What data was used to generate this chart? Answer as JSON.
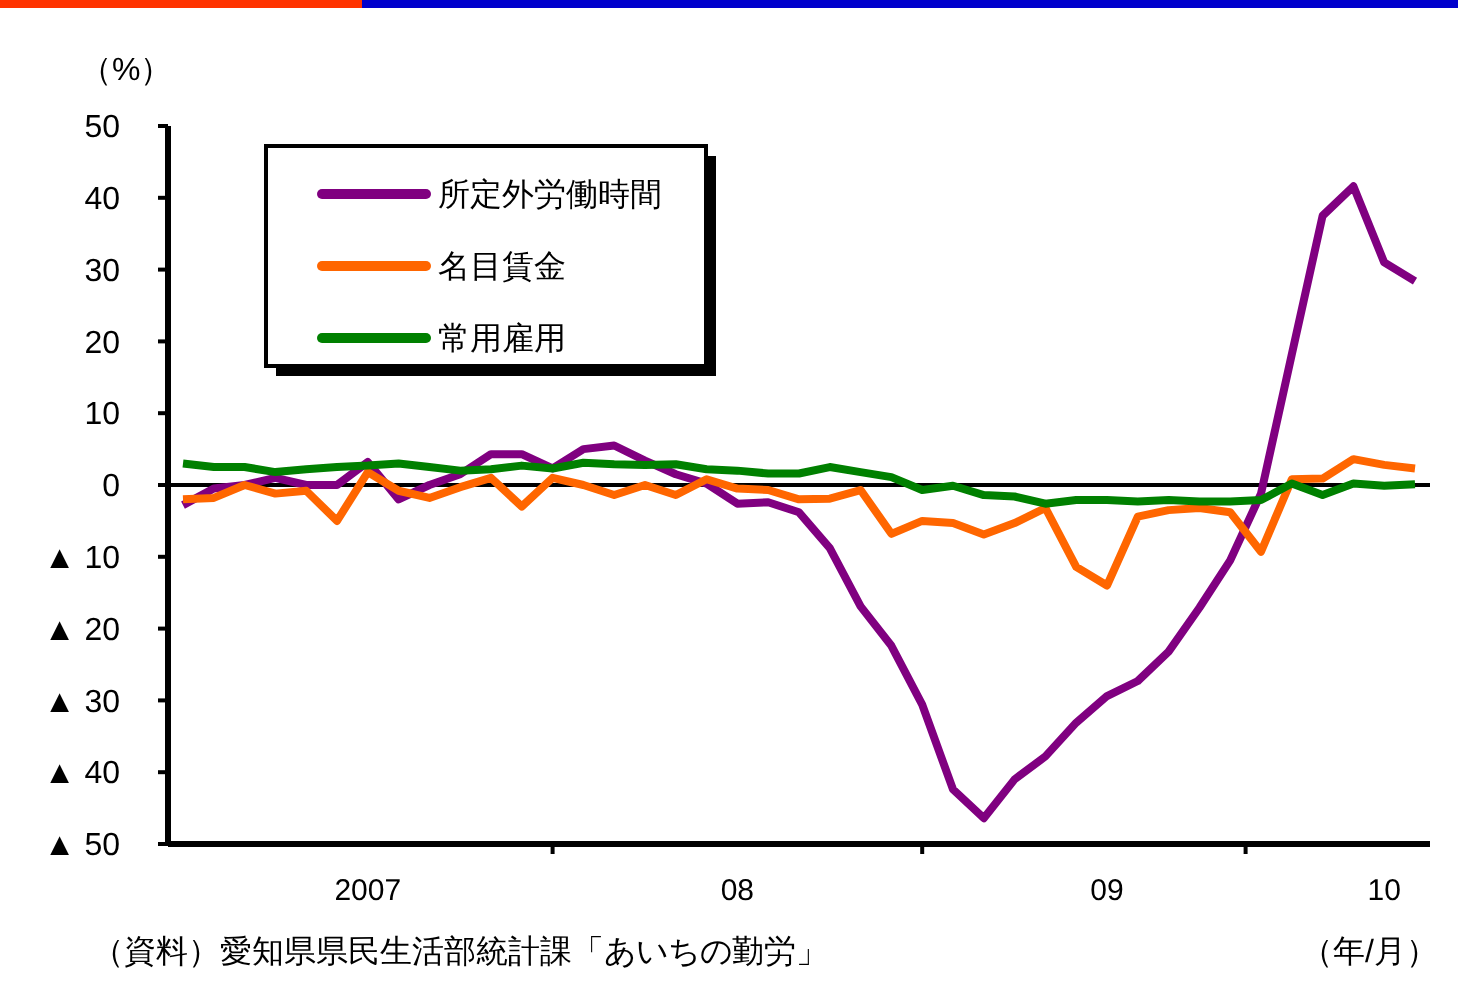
{
  "chart_data": {
    "type": "line",
    "ylabel": "（%）",
    "xlabel": "（年/月）",
    "categories": [
      null,
      null,
      null,
      null,
      null,
      null,
      "2007",
      null,
      null,
      null,
      null,
      null,
      null,
      null,
      null,
      null,
      null,
      null,
      "08",
      null,
      null,
      null,
      null,
      null,
      null,
      null,
      null,
      null,
      null,
      null,
      "09",
      null,
      null,
      null,
      null,
      null,
      null,
      null,
      null,
      "10",
      null
    ],
    "series": [
      {
        "name": "所定外労働時間",
        "color": "#800080",
        "values": [
          -2.8,
          -0.5,
          0,
          1,
          0,
          0,
          3.2,
          -2,
          0,
          1.5,
          4.3,
          4.3,
          2.3,
          5,
          5.5,
          3.4,
          1.5,
          0.2,
          -2.6,
          -2.4,
          -3.8,
          -8.8,
          -16.9,
          -22.4,
          -30.6,
          -42.4,
          -46.4,
          -41,
          -37.8,
          -33.1,
          -29.4,
          -27.3,
          -23.2,
          -17.1,
          -10.5,
          -1.2,
          18.2,
          37.5,
          41.6,
          31,
          28.4
        ]
      },
      {
        "name": "名目賃金",
        "color": "#ff6600",
        "values": [
          -2,
          -1.8,
          0,
          -1.2,
          -0.8,
          -5,
          1.8,
          -0.8,
          -1.8,
          -0.3,
          1,
          -3,
          1,
          0,
          -1.4,
          0,
          -1.4,
          0.8,
          -0.5,
          -0.7,
          -2,
          -1.9,
          -0.7,
          -6.8,
          -5,
          -5.3,
          -6.9,
          -5.3,
          -3.2,
          -11.4,
          -14,
          -4.4,
          -3.5,
          -3.2,
          -3.8,
          -9.3,
          0.8,
          0.9,
          3.6,
          2.8,
          2.3
        ]
      },
      {
        "name": "常用雇用",
        "color": "#008000",
        "values": [
          3,
          2.5,
          2.5,
          1.8,
          2.2,
          2.5,
          2.7,
          3,
          2.5,
          2,
          2.2,
          2.7,
          2.3,
          3.1,
          2.9,
          2.8,
          2.9,
          2.2,
          2,
          1.6,
          1.6,
          2.5,
          1.8,
          1.1,
          -0.7,
          -0.1,
          -1.4,
          -1.6,
          -2.6,
          -2.1,
          -2.1,
          -2.3,
          -2.1,
          -2.3,
          -2.3,
          -2.1,
          0.2,
          -1.4,
          0.2,
          -0.1,
          0.1
        ]
      }
    ],
    "ylim": [
      -50,
      50
    ],
    "yticks": [
      {
        "value": -50,
        "label": "▲ 50"
      },
      {
        "value": -40,
        "label": "▲ 40"
      },
      {
        "value": -30,
        "label": "▲ 30"
      },
      {
        "value": -20,
        "label": "▲ 20"
      },
      {
        "value": -10,
        "label": "▲ 10"
      },
      0,
      10,
      20,
      30,
      40,
      50
    ],
    "ref_lines": [
      {
        "axis": "y",
        "value": 0,
        "color": "#000000"
      }
    ],
    "grid": false,
    "legend": "top left",
    "marker": "none",
    "line_style": "solid",
    "annotations": [
      "（資料）愛知県県民生活部統計課「あいちの勤労」"
    ]
  }
}
